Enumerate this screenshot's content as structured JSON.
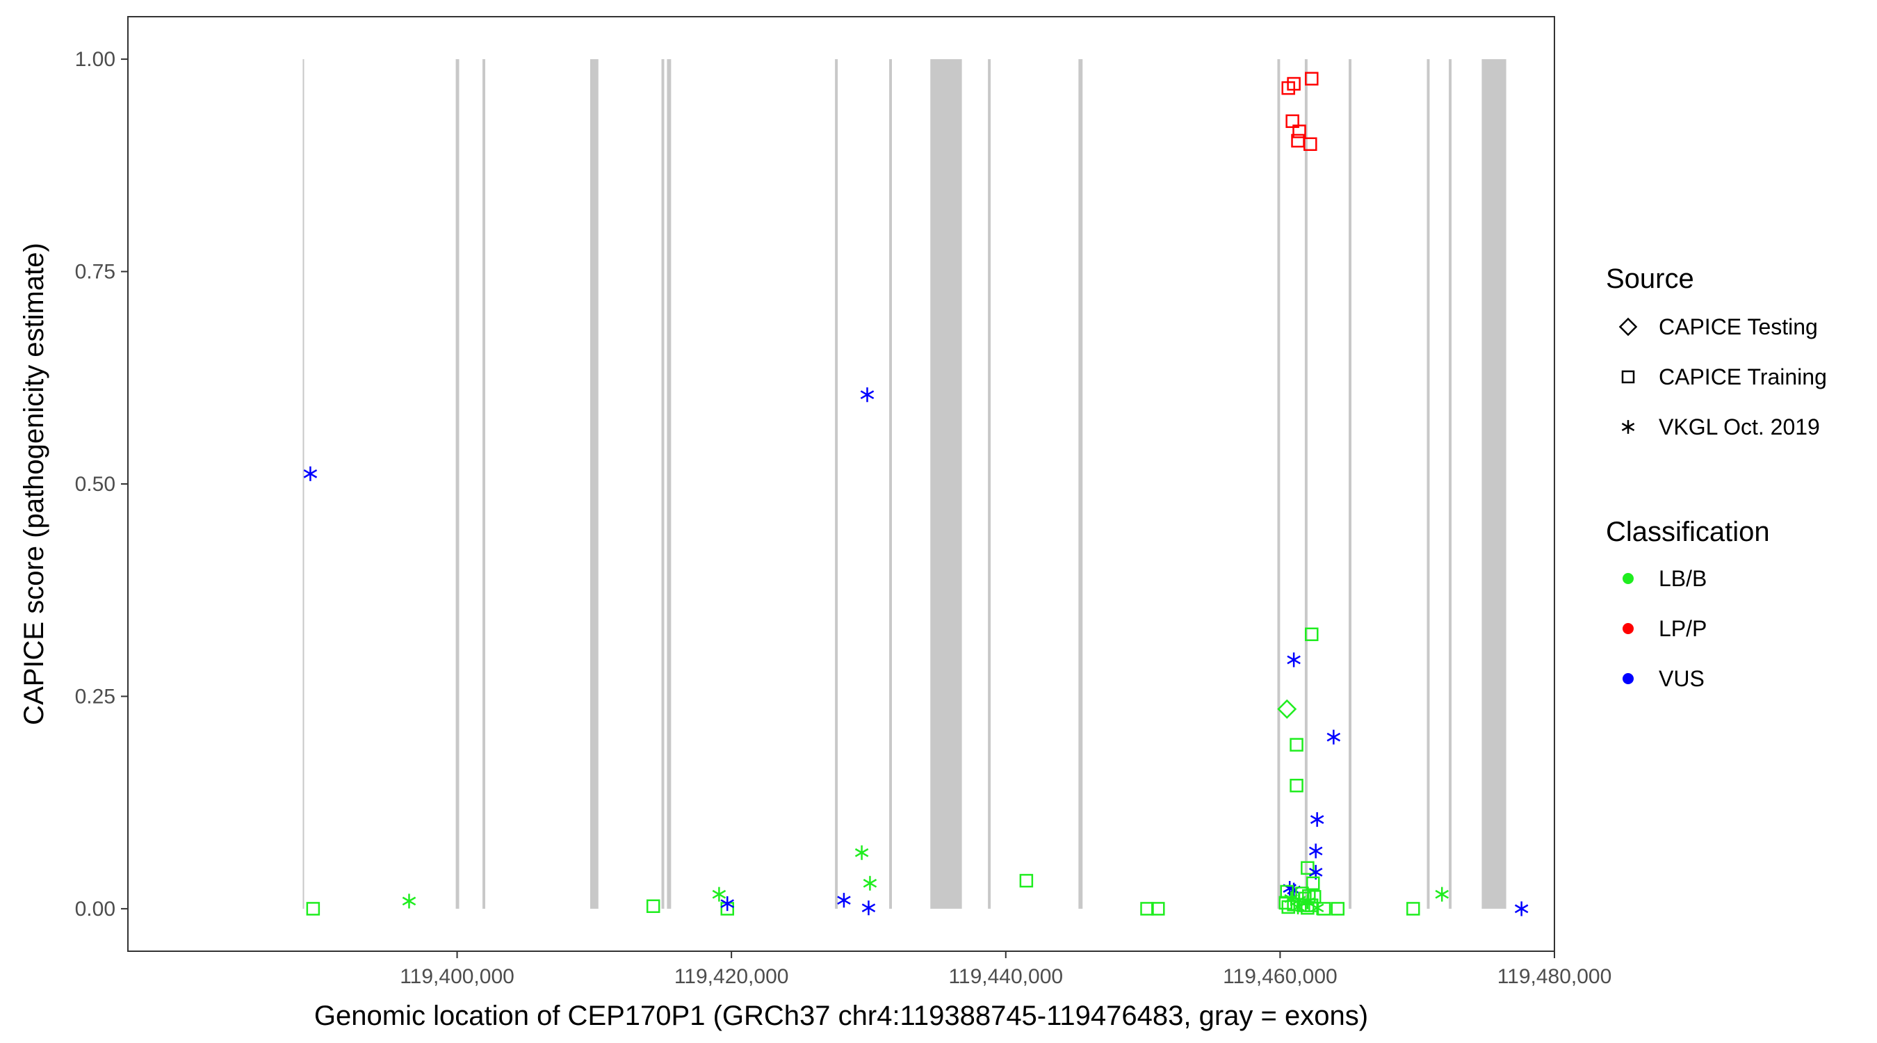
{
  "chart_data": {
    "type": "scatter",
    "title": "",
    "xlabel": "Genomic location of CEP170P1 (GRCh37 chr4:119388745-119476483, gray = exons)",
    "ylabel": "CAPICE score (pathogenicity estimate)",
    "xlim": [
      119376000,
      119480000
    ],
    "ylim": [
      -0.05,
      1.05
    ],
    "x_ticks": [
      {
        "value": 119400000,
        "label": "119,400,000"
      },
      {
        "value": 119420000,
        "label": "119,420,000"
      },
      {
        "value": 119440000,
        "label": "119,440,000"
      },
      {
        "value": 119460000,
        "label": "119,460,000"
      },
      {
        "value": 119480000,
        "label": "119,480,000"
      }
    ],
    "y_ticks": [
      {
        "value": 0.0,
        "label": "0.00"
      },
      {
        "value": 0.25,
        "label": "0.25"
      },
      {
        "value": 0.5,
        "label": "0.50"
      },
      {
        "value": 0.75,
        "label": "0.75"
      },
      {
        "value": 1.0,
        "label": "1.00"
      }
    ],
    "grid": false,
    "exons": [
      [
        119388745,
        119388845
      ],
      [
        119399900,
        119400150
      ],
      [
        119401850,
        119402050
      ],
      [
        119409700,
        119410300
      ],
      [
        119414900,
        119415100
      ],
      [
        119415300,
        119415600
      ],
      [
        119427550,
        119427750
      ],
      [
        119431500,
        119431700
      ],
      [
        119434500,
        119436800
      ],
      [
        119438700,
        119438900
      ],
      [
        119445300,
        119445600
      ],
      [
        119459800,
        119460000
      ],
      [
        119461800,
        119462000
      ],
      [
        119465000,
        119465200
      ],
      [
        119470700,
        119470900
      ],
      [
        119472300,
        119472500
      ],
      [
        119474700,
        119476483
      ]
    ],
    "colors": {
      "LB/B": "#1fed1f",
      "LP/P": "#ff0000",
      "VUS": "#0000ff"
    },
    "legend": {
      "position": "right",
      "source_title": "Source",
      "source_items": [
        {
          "shape": "diamond",
          "label": "CAPICE Testing"
        },
        {
          "shape": "square",
          "label": "CAPICE Training"
        },
        {
          "shape": "asterisk",
          "label": "VKGL Oct. 2019"
        }
      ],
      "class_title": "Classification",
      "class_items": [
        {
          "class": "LB/B",
          "label": "LB/B"
        },
        {
          "class": "LP/P",
          "label": "LP/P"
        },
        {
          "class": "VUS",
          "label": "VUS"
        }
      ]
    },
    "points": [
      {
        "x": 119389300,
        "y": 0.512,
        "source": "VKGL Oct. 2019",
        "class": "VUS"
      },
      {
        "x": 119389500,
        "y": 0.0,
        "source": "CAPICE Training",
        "class": "LB/B"
      },
      {
        "x": 119396500,
        "y": 0.009,
        "source": "VKGL Oct. 2019",
        "class": "LB/B"
      },
      {
        "x": 119414300,
        "y": 0.003,
        "source": "CAPICE Training",
        "class": "LB/B"
      },
      {
        "x": 119419100,
        "y": 0.017,
        "source": "VKGL Oct. 2019",
        "class": "LB/B"
      },
      {
        "x": 119419700,
        "y": 0.0,
        "source": "CAPICE Training",
        "class": "LB/B"
      },
      {
        "x": 119419700,
        "y": 0.006,
        "source": "VKGL Oct. 2019",
        "class": "VUS"
      },
      {
        "x": 119428200,
        "y": 0.01,
        "source": "VKGL Oct. 2019",
        "class": "VUS"
      },
      {
        "x": 119429500,
        "y": 0.066,
        "source": "VKGL Oct. 2019",
        "class": "LB/B"
      },
      {
        "x": 119429900,
        "y": 0.605,
        "source": "VKGL Oct. 2019",
        "class": "VUS"
      },
      {
        "x": 119430100,
        "y": 0.03,
        "source": "VKGL Oct. 2019",
        "class": "LB/B"
      },
      {
        "x": 119430000,
        "y": 0.001,
        "source": "VKGL Oct. 2019",
        "class": "VUS"
      },
      {
        "x": 119441500,
        "y": 0.033,
        "source": "CAPICE Training",
        "class": "LB/B"
      },
      {
        "x": 119450300,
        "y": 0.0,
        "source": "CAPICE Training",
        "class": "LB/B"
      },
      {
        "x": 119451100,
        "y": 0.0,
        "source": "CAPICE Training",
        "class": "LB/B"
      },
      {
        "x": 119460600,
        "y": 0.966,
        "source": "CAPICE Training",
        "class": "LP/P"
      },
      {
        "x": 119461000,
        "y": 0.971,
        "source": "CAPICE Training",
        "class": "LP/P"
      },
      {
        "x": 119462300,
        "y": 0.977,
        "source": "CAPICE Training",
        "class": "LP/P"
      },
      {
        "x": 119460900,
        "y": 0.927,
        "source": "CAPICE Training",
        "class": "LP/P"
      },
      {
        "x": 119461400,
        "y": 0.915,
        "source": "CAPICE Training",
        "class": "LP/P"
      },
      {
        "x": 119461300,
        "y": 0.904,
        "source": "CAPICE Training",
        "class": "LP/P"
      },
      {
        "x": 119462200,
        "y": 0.9,
        "source": "CAPICE Training",
        "class": "LP/P"
      },
      {
        "x": 119462300,
        "y": 0.323,
        "source": "CAPICE Training",
        "class": "LB/B"
      },
      {
        "x": 119461000,
        "y": 0.293,
        "source": "VKGL Oct. 2019",
        "class": "VUS"
      },
      {
        "x": 119460500,
        "y": 0.235,
        "source": "CAPICE Testing",
        "class": "LB/B"
      },
      {
        "x": 119463900,
        "y": 0.202,
        "source": "VKGL Oct. 2019",
        "class": "VUS"
      },
      {
        "x": 119461200,
        "y": 0.193,
        "source": "CAPICE Training",
        "class": "LB/B"
      },
      {
        "x": 119461200,
        "y": 0.145,
        "source": "CAPICE Training",
        "class": "LB/B"
      },
      {
        "x": 119462700,
        "y": 0.105,
        "source": "VKGL Oct. 2019",
        "class": "VUS"
      },
      {
        "x": 119462600,
        "y": 0.068,
        "source": "VKGL Oct. 2019",
        "class": "VUS"
      },
      {
        "x": 119462000,
        "y": 0.048,
        "source": "CAPICE Training",
        "class": "LB/B"
      },
      {
        "x": 119462600,
        "y": 0.043,
        "source": "VKGL Oct. 2019",
        "class": "VUS"
      },
      {
        "x": 119462400,
        "y": 0.03,
        "source": "CAPICE Training",
        "class": "LB/B"
      },
      {
        "x": 119460700,
        "y": 0.024,
        "source": "VKGL Oct. 2019",
        "class": "VUS"
      },
      {
        "x": 119461000,
        "y": 0.022,
        "source": "VKGL Oct. 2019",
        "class": "VUS"
      },
      {
        "x": 119460500,
        "y": 0.02,
        "source": "CAPICE Training",
        "class": "LB/B"
      },
      {
        "x": 119461600,
        "y": 0.018,
        "source": "CAPICE Training",
        "class": "LB/B"
      },
      {
        "x": 119462100,
        "y": 0.015,
        "source": "CAPICE Training",
        "class": "LB/B"
      },
      {
        "x": 119460800,
        "y": 0.012,
        "source": "VKGL Oct. 2019",
        "class": "LB/B"
      },
      {
        "x": 119461400,
        "y": 0.01,
        "source": "VKGL Oct. 2019",
        "class": "LB/B"
      },
      {
        "x": 119462000,
        "y": 0.008,
        "source": "VKGL Oct. 2019",
        "class": "LB/B"
      },
      {
        "x": 119460400,
        "y": 0.007,
        "source": "CAPICE Training",
        "class": "LB/B"
      },
      {
        "x": 119461000,
        "y": 0.005,
        "source": "CAPICE Training",
        "class": "LB/B"
      },
      {
        "x": 119461700,
        "y": 0.004,
        "source": "CAPICE Training",
        "class": "LB/B"
      },
      {
        "x": 119462300,
        "y": 0.004,
        "source": "CAPICE Training",
        "class": "LB/B"
      },
      {
        "x": 119460600,
        "y": 0.002,
        "source": "CAPICE Training",
        "class": "LB/B"
      },
      {
        "x": 119461300,
        "y": 0.002,
        "source": "VKGL Oct. 2019",
        "class": "LB/B"
      },
      {
        "x": 119462000,
        "y": 0.001,
        "source": "CAPICE Training",
        "class": "LB/B"
      },
      {
        "x": 119462700,
        "y": 0.001,
        "source": "VKGL Oct. 2019",
        "class": "LB/B"
      },
      {
        "x": 119461800,
        "y": 0.012,
        "source": "CAPICE Training",
        "class": "LB/B"
      },
      {
        "x": 119462500,
        "y": 0.014,
        "source": "CAPICE Training",
        "class": "LB/B"
      },
      {
        "x": 119463200,
        "y": 0.0,
        "source": "CAPICE Training",
        "class": "LB/B"
      },
      {
        "x": 119464200,
        "y": 0.0,
        "source": "CAPICE Training",
        "class": "LB/B"
      },
      {
        "x": 119469700,
        "y": 0.0,
        "source": "CAPICE Training",
        "class": "LB/B"
      },
      {
        "x": 119471800,
        "y": 0.017,
        "source": "VKGL Oct. 2019",
        "class": "LB/B"
      },
      {
        "x": 119477600,
        "y": 0.0,
        "source": "VKGL Oct. 2019",
        "class": "VUS"
      }
    ]
  }
}
